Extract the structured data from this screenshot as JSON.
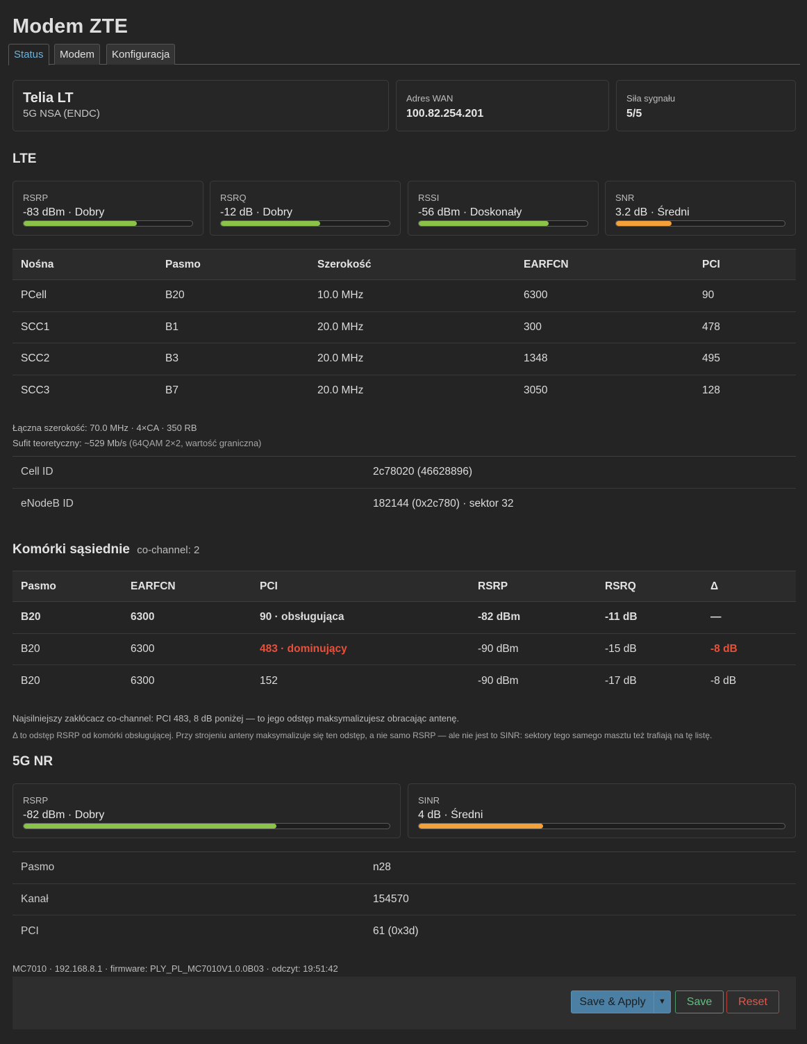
{
  "title": "Modem ZTE",
  "tabs": [
    {
      "label": "Status"
    },
    {
      "label": "Modem"
    },
    {
      "label": "Konfiguracja"
    }
  ],
  "summary": {
    "operator": "Telia LT",
    "mode": "5G NSA (ENDC)",
    "wan_label": "Adres WAN",
    "wan_value": "100.82.254.201",
    "signal_label": "Siła sygnału",
    "signal_value": "5/5"
  },
  "lte": {
    "title": "LTE",
    "meters": [
      {
        "label": "RSRP",
        "value": "-83 dBm · Dobry",
        "level": 0.67,
        "color": "#8bc34a"
      },
      {
        "label": "RSRQ",
        "value": "-12 dB · Dobry",
        "level": 0.59,
        "color": "#8bc34a"
      },
      {
        "label": "RSSI",
        "value": "-56 dBm · Doskonały",
        "level": 0.77,
        "color": "#8bc34a"
      },
      {
        "label": "SNR",
        "value": "3.2 dB · Średni",
        "level": 0.33,
        "color": "#f5a13a"
      }
    ],
    "carriers": {
      "headers": [
        "Nośna",
        "Pasmo",
        "Szerokość",
        "EARFCN",
        "PCI"
      ],
      "rows": [
        [
          "PCell",
          "B20",
          "10.0 MHz",
          "6300",
          "90"
        ],
        [
          "SCC1",
          "B1",
          "20.0 MHz",
          "300",
          "478"
        ],
        [
          "SCC2",
          "B3",
          "20.0 MHz",
          "1348",
          "495"
        ],
        [
          "SCC3",
          "B7",
          "20.0 MHz",
          "3050",
          "128"
        ]
      ]
    },
    "note_total": "Łączna szerokość: 70.0 MHz · 4×CA · 350 RB",
    "note_ceiling": "Sufit teoretyczny: ~529 Mb/s",
    "note_ceiling_dim": " (64QAM 2×2, wartość graniczna)",
    "info": [
      {
        "label": "Cell ID",
        "value": "2c78020 (46628896)"
      },
      {
        "label": "eNodeB ID",
        "value": "182144 (0x2c780) · sektor 32"
      }
    ]
  },
  "neighbors": {
    "title": "Komórki sąsiednie",
    "subtitle": "co-channel: 2",
    "headers": [
      "Pasmo",
      "EARFCN",
      "PCI",
      "RSRP",
      "RSRQ",
      "Δ"
    ],
    "rows": [
      [
        "B20",
        "6300",
        "90 · obsługująca",
        "-82 dBm",
        "-11 dB",
        "—"
      ],
      [
        "B20",
        "6300",
        "483 · dominujący",
        "-90 dBm",
        "-15 dB",
        "-8 dB"
      ],
      [
        "B20",
        "6300",
        "152",
        "-90 dBm",
        "-17 dB",
        "-8 dB"
      ]
    ],
    "note1": "Najsilniejszy zakłócacz co-channel: PCI 483, 8 dB poniżej — to jego odstęp maksymalizujesz obracając antenę.",
    "note2": "Δ to odstęp RSRP od komórki obsługującej. Przy strojeniu anteny maksymalizuje się ten odstęp, a nie samo RSRP — ale nie jest to SINR: sektory tego samego masztu też trafiają na tę listę."
  },
  "nr": {
    "title": "5G NR",
    "meters": [
      {
        "label": "RSRP",
        "value": "-82 dBm · Dobry",
        "level": 0.69,
        "color": "#8bc34a"
      },
      {
        "label": "SINR",
        "value": "4 dB · Średni",
        "level": 0.34,
        "color": "#f5a13a"
      }
    ],
    "info": [
      {
        "label": "Pasmo",
        "value": "n28"
      },
      {
        "label": "Kanał",
        "value": "154570"
      },
      {
        "label": "PCI",
        "value": "61 (0x3d)"
      }
    ]
  },
  "footer_text": "MC7010 · 192.168.8.1 · firmware: PLY_PL_MC7010V1.0.0B03 · odczyt: 19:51:42",
  "buttons": {
    "save_apply": "Save & Apply",
    "save": "Save",
    "reset": "Reset"
  }
}
